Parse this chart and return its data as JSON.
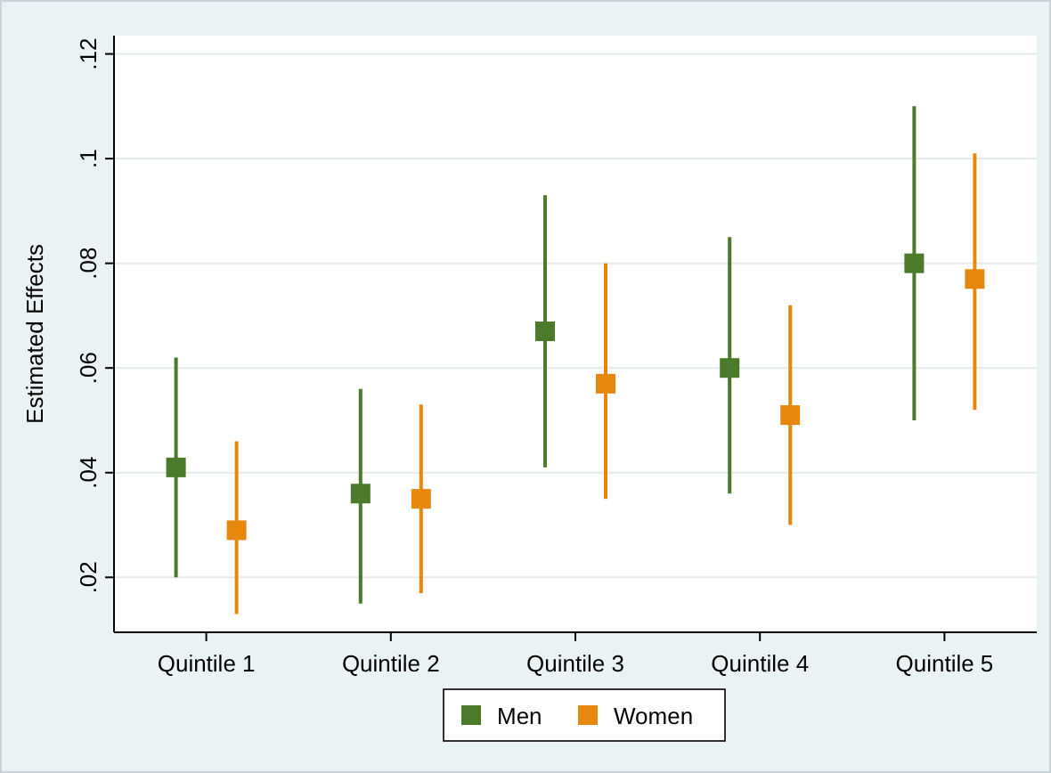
{
  "chart_data": {
    "type": "scatter",
    "ylabel": "Estimated Effects",
    "categories": [
      "Quintile 1",
      "Quintile 2",
      "Quintile 3",
      "Quintile 4",
      "Quintile 5"
    ],
    "ylim": [
      0.0095,
      0.1235
    ],
    "yticks": [
      {
        "value": 0.02,
        "label": ".02"
      },
      {
        "value": 0.04,
        "label": ".04"
      },
      {
        "value": 0.06,
        "label": ".06"
      },
      {
        "value": 0.08,
        "label": ".08"
      },
      {
        "value": 0.1,
        "label": ".1"
      },
      {
        "value": 0.12,
        "label": ".12"
      }
    ],
    "grid": "y",
    "legend": "bottom",
    "marker": "square",
    "series": [
      {
        "name": "Men",
        "color": "#4a7a2a",
        "values": [
          0.041,
          0.036,
          0.067,
          0.06,
          0.08
        ],
        "errors": [
          [
            0.02,
            0.062
          ],
          [
            0.015,
            0.056
          ],
          [
            0.041,
            0.093
          ],
          [
            0.036,
            0.085
          ],
          [
            0.05,
            0.11
          ]
        ]
      },
      {
        "name": "Women",
        "color": "#e8870e",
        "values": [
          0.029,
          0.035,
          0.057,
          0.051,
          0.077
        ],
        "errors": [
          [
            0.013,
            0.046
          ],
          [
            0.017,
            0.053
          ],
          [
            0.035,
            0.08
          ],
          [
            0.03,
            0.072
          ],
          [
            0.052,
            0.101
          ]
        ]
      }
    ]
  }
}
